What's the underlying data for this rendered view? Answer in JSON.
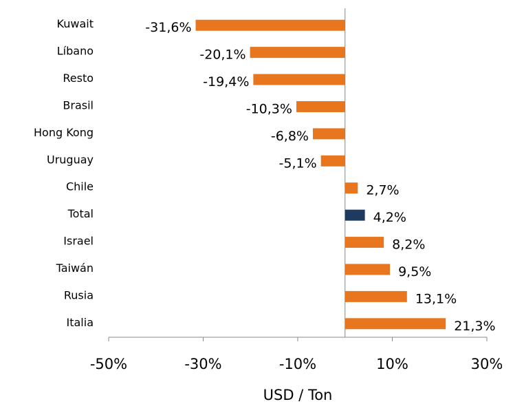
{
  "chart_data": {
    "type": "bar",
    "orientation": "horizontal",
    "categories": [
      "Kuwait",
      "Líbano",
      "Resto",
      "Brasil",
      "Hong Kong",
      "Uruguay",
      "Chile",
      "Total",
      "Israel",
      "Taiwán",
      "Rusia",
      "Italia"
    ],
    "values": [
      -31.6,
      -20.1,
      -19.4,
      -10.3,
      -6.8,
      -5.1,
      2.7,
      4.2,
      8.2,
      9.5,
      13.1,
      21.3
    ],
    "value_labels": [
      "-31,6%",
      "-20,1%",
      "-19,4%",
      "-10,3%",
      "-6,8%",
      "-5,1%",
      "2,7%",
      "4,2%",
      "8,2%",
      "9,5%",
      "13,1%",
      "21,3%"
    ],
    "colors": [
      "#e8761e",
      "#e8761e",
      "#e8761e",
      "#e8761e",
      "#e8761e",
      "#e8761e",
      "#e8761e",
      "#1f3a5f",
      "#e8761e",
      "#e8761e",
      "#e8761e",
      "#e8761e"
    ],
    "xlim": [
      -50,
      30
    ],
    "xticks": [
      {
        "value": -50,
        "label": "-50%"
      },
      {
        "value": -30,
        "label": "-30%"
      },
      {
        "value": -10,
        "label": "-10%"
      },
      {
        "value": 10,
        "label": "10%"
      },
      {
        "value": 30,
        "label": "30%"
      }
    ],
    "x_label": "USD / Ton"
  }
}
